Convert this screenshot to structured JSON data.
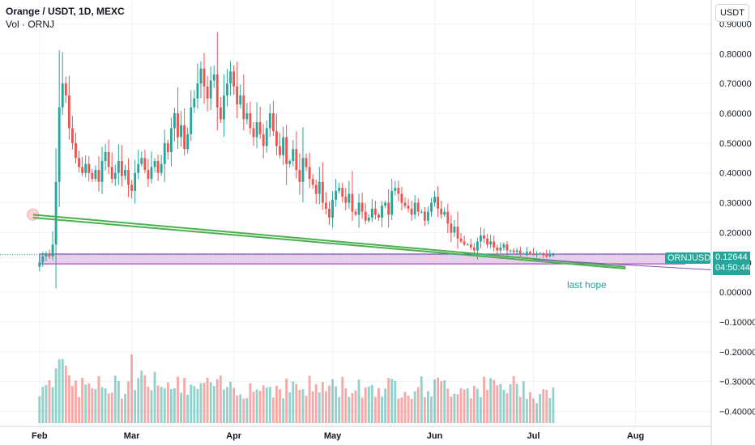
{
  "header": {
    "title": "Orange / USDT, 1D, MEXC",
    "volume_label": "Vol · ORNJ"
  },
  "axis_unit_button": "USDT",
  "price_tag": {
    "symbol": "ORNJUSDT",
    "price": "0.12644",
    "countdown": "04:50:44",
    "color": "#26a69a"
  },
  "annotation": {
    "text": "last hope",
    "color": "#26a69a"
  },
  "colors": {
    "up": "#26a69a",
    "down": "#ef5350",
    "box": "#e1bee7",
    "trendline": "#4caf50"
  },
  "chart_data": {
    "type": "candlestick",
    "y_ticks": [
      "0.90000",
      "0.80000",
      "0.70000",
      "0.60000",
      "0.50000",
      "0.40000",
      "0.30000",
      "0.20000",
      "0.10000",
      "0.00000",
      "−0.10000",
      "−0.20000",
      "−0.30000",
      "−0.40000"
    ],
    "y_tick_values": [
      0.9,
      0.8,
      0.7,
      0.6,
      0.5,
      0.4,
      0.3,
      0.2,
      0.1,
      0.0,
      -0.1,
      -0.2,
      -0.3,
      -0.4
    ],
    "x_ticks": [
      "Feb",
      "Mar",
      "Apr",
      "May",
      "Jun",
      "Jul",
      "Aug"
    ],
    "x_tick_days": [
      0,
      28,
      59,
      89,
      120,
      150,
      181
    ],
    "y_range": [
      -0.45,
      0.98
    ],
    "x_range_days": [
      -12,
      204
    ],
    "last_price": 0.12644,
    "start_day": 0,
    "closes": [
      0.1,
      0.12,
      0.13,
      0.12,
      0.16,
      0.37,
      0.62,
      0.7,
      0.66,
      0.55,
      0.5,
      0.45,
      0.42,
      0.4,
      0.43,
      0.4,
      0.38,
      0.41,
      0.37,
      0.44,
      0.47,
      0.42,
      0.38,
      0.4,
      0.44,
      0.39,
      0.41,
      0.36,
      0.34,
      0.4,
      0.43,
      0.45,
      0.41,
      0.38,
      0.42,
      0.44,
      0.4,
      0.43,
      0.5,
      0.47,
      0.55,
      0.6,
      0.52,
      0.56,
      0.48,
      0.53,
      0.62,
      0.65,
      0.7,
      0.75,
      0.69,
      0.65,
      0.71,
      0.73,
      0.62,
      0.58,
      0.66,
      0.7,
      0.74,
      0.69,
      0.63,
      0.66,
      0.58,
      0.6,
      0.55,
      0.52,
      0.57,
      0.53,
      0.49,
      0.55,
      0.6,
      0.54,
      0.49,
      0.46,
      0.52,
      0.43,
      0.44,
      0.48,
      0.41,
      0.37,
      0.45,
      0.42,
      0.38,
      0.36,
      0.33,
      0.37,
      0.3,
      0.28,
      0.25,
      0.31,
      0.34,
      0.35,
      0.32,
      0.3,
      0.33,
      0.27,
      0.26,
      0.3,
      0.27,
      0.24,
      0.25,
      0.28,
      0.26,
      0.25,
      0.29,
      0.3,
      0.26,
      0.34,
      0.35,
      0.33,
      0.3,
      0.29,
      0.28,
      0.26,
      0.3,
      0.27,
      0.27,
      0.24,
      0.27,
      0.3,
      0.32,
      0.28,
      0.26,
      0.27,
      0.23,
      0.2,
      0.22,
      0.18,
      0.17,
      0.16,
      0.16,
      0.15,
      0.14,
      0.17,
      0.19,
      0.18,
      0.16,
      0.17,
      0.15,
      0.14,
      0.15,
      0.16,
      0.14,
      0.14,
      0.135,
      0.14,
      0.13,
      0.13,
      0.135,
      0.13,
      0.125,
      0.13,
      0.13,
      0.125,
      0.12,
      0.126,
      0.12644
    ],
    "annotation_box": {
      "from_day": 0,
      "to_day": 196,
      "top": 0.128,
      "bottom": 0.095
    },
    "trendlines": [
      {
        "from_day": -2,
        "from_price": 0.26,
        "to_day": 178,
        "to_price": 0.085
      },
      {
        "from_day": -2,
        "from_price": 0.25,
        "to_day": 178,
        "to_price": 0.079
      },
      {
        "from_day": 150,
        "from_price": 0.11,
        "to_day": 204,
        "to_price": 0.075
      }
    ]
  }
}
